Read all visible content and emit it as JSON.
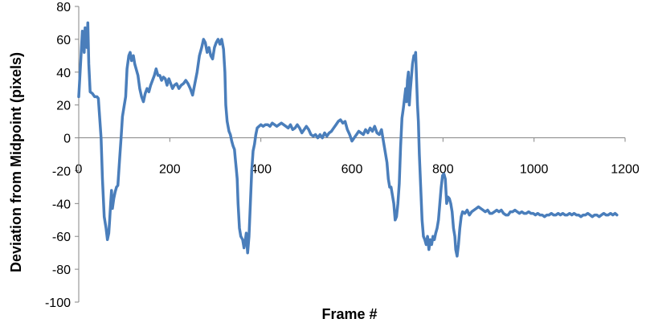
{
  "chart_data": {
    "type": "line",
    "title": "",
    "xlabel": "Frame #",
    "ylabel": "Deviation from Midpoint (pixels)",
    "xlim": [
      0,
      1200
    ],
    "ylim": [
      -100,
      80
    ],
    "x_ticks": [
      0,
      200,
      400,
      600,
      800,
      1000,
      1200
    ],
    "x_tick_labels": [
      "0",
      "200",
      "400",
      "600",
      "800",
      "1000",
      "1200"
    ],
    "y_ticks": [
      80,
      60,
      40,
      20,
      0,
      -20,
      -40,
      -60,
      -80,
      -100
    ],
    "y_tick_labels": [
      "80",
      "60",
      "40",
      "20",
      "0",
      "-20",
      "-40",
      "-60",
      "-80",
      "-100"
    ],
    "grid": false,
    "legend": "none",
    "series": [
      {
        "color": "#4a7ebb",
        "points": [
          [
            0,
            25
          ],
          [
            3,
            40
          ],
          [
            6,
            55
          ],
          [
            8,
            65
          ],
          [
            10,
            60
          ],
          [
            12,
            52
          ],
          [
            14,
            67
          ],
          [
            16,
            58
          ],
          [
            18,
            55
          ],
          [
            20,
            70
          ],
          [
            22,
            45
          ],
          [
            25,
            28
          ],
          [
            30,
            27
          ],
          [
            35,
            25
          ],
          [
            40,
            25
          ],
          [
            43,
            24
          ],
          [
            46,
            12
          ],
          [
            49,
            0
          ],
          [
            52,
            -25
          ],
          [
            56,
            -48
          ],
          [
            60,
            -55
          ],
          [
            63,
            -62
          ],
          [
            66,
            -58
          ],
          [
            68,
            -50
          ],
          [
            70,
            -40
          ],
          [
            72,
            -32
          ],
          [
            74,
            -43
          ],
          [
            77,
            -37
          ],
          [
            80,
            -33
          ],
          [
            83,
            -30
          ],
          [
            86,
            -29
          ],
          [
            90,
            -12
          ],
          [
            93,
            0
          ],
          [
            96,
            13
          ],
          [
            100,
            20
          ],
          [
            103,
            25
          ],
          [
            106,
            42
          ],
          [
            110,
            50
          ],
          [
            113,
            52
          ],
          [
            116,
            47
          ],
          [
            120,
            50
          ],
          [
            123,
            45
          ],
          [
            126,
            42
          ],
          [
            130,
            38
          ],
          [
            134,
            30
          ],
          [
            138,
            25
          ],
          [
            142,
            22
          ],
          [
            146,
            27
          ],
          [
            150,
            30
          ],
          [
            154,
            28
          ],
          [
            158,
            32
          ],
          [
            162,
            35
          ],
          [
            166,
            38
          ],
          [
            170,
            42
          ],
          [
            174,
            38
          ],
          [
            178,
            38
          ],
          [
            182,
            35
          ],
          [
            186,
            37
          ],
          [
            190,
            36
          ],
          [
            194,
            32
          ],
          [
            198,
            36
          ],
          [
            202,
            33
          ],
          [
            206,
            30
          ],
          [
            210,
            32
          ],
          [
            215,
            33
          ],
          [
            220,
            30
          ],
          [
            225,
            32
          ],
          [
            230,
            33
          ],
          [
            235,
            35
          ],
          [
            240,
            33
          ],
          [
            245,
            30
          ],
          [
            250,
            26
          ],
          [
            255,
            33
          ],
          [
            260,
            40
          ],
          [
            265,
            50
          ],
          [
            270,
            55
          ],
          [
            274,
            60
          ],
          [
            278,
            58
          ],
          [
            282,
            52
          ],
          [
            286,
            55
          ],
          [
            290,
            50
          ],
          [
            294,
            48
          ],
          [
            298,
            55
          ],
          [
            302,
            58
          ],
          [
            306,
            60
          ],
          [
            310,
            57
          ],
          [
            314,
            60
          ],
          [
            318,
            54
          ],
          [
            321,
            40
          ],
          [
            323,
            20
          ],
          [
            326,
            10
          ],
          [
            330,
            4
          ],
          [
            333,
            2
          ],
          [
            336,
            -2
          ],
          [
            339,
            -5
          ],
          [
            342,
            -7
          ],
          [
            344,
            -13
          ],
          [
            346,
            -19
          ],
          [
            348,
            -25
          ],
          [
            350,
            -40
          ],
          [
            353,
            -55
          ],
          [
            356,
            -60
          ],
          [
            360,
            -62
          ],
          [
            363,
            -67
          ],
          [
            366,
            -62
          ],
          [
            368,
            -58
          ],
          [
            371,
            -70
          ],
          [
            374,
            -60
          ],
          [
            377,
            -40
          ],
          [
            380,
            -20
          ],
          [
            383,
            -8
          ],
          [
            386,
            -4
          ],
          [
            389,
            2
          ],
          [
            392,
            6
          ],
          [
            396,
            7
          ],
          [
            400,
            8
          ],
          [
            405,
            7
          ],
          [
            410,
            8
          ],
          [
            415,
            8
          ],
          [
            420,
            7
          ],
          [
            425,
            9
          ],
          [
            430,
            8
          ],
          [
            435,
            7
          ],
          [
            440,
            8
          ],
          [
            445,
            9
          ],
          [
            450,
            8
          ],
          [
            455,
            7
          ],
          [
            460,
            6
          ],
          [
            465,
            8
          ],
          [
            470,
            5
          ],
          [
            475,
            6
          ],
          [
            480,
            8
          ],
          [
            485,
            6
          ],
          [
            490,
            3
          ],
          [
            495,
            5
          ],
          [
            500,
            7
          ],
          [
            505,
            5
          ],
          [
            510,
            2
          ],
          [
            515,
            1
          ],
          [
            520,
            2
          ],
          [
            525,
            0
          ],
          [
            530,
            2
          ],
          [
            535,
            0
          ],
          [
            540,
            3
          ],
          [
            545,
            1
          ],
          [
            550,
            3
          ],
          [
            555,
            4
          ],
          [
            560,
            6
          ],
          [
            565,
            8
          ],
          [
            570,
            10
          ],
          [
            575,
            11
          ],
          [
            580,
            9
          ],
          [
            585,
            10
          ],
          [
            590,
            5
          ],
          [
            595,
            2
          ],
          [
            600,
            -2
          ],
          [
            605,
            0
          ],
          [
            610,
            2
          ],
          [
            615,
            4
          ],
          [
            620,
            3
          ],
          [
            625,
            2
          ],
          [
            630,
            5
          ],
          [
            635,
            3
          ],
          [
            640,
            6
          ],
          [
            645,
            4
          ],
          [
            650,
            7
          ],
          [
            655,
            3
          ],
          [
            660,
            2
          ],
          [
            665,
            5
          ],
          [
            668,
            0
          ],
          [
            671,
            -5
          ],
          [
            674,
            -10
          ],
          [
            677,
            -15
          ],
          [
            680,
            -25
          ],
          [
            683,
            -30
          ],
          [
            686,
            -30
          ],
          [
            689,
            -35
          ],
          [
            692,
            -40
          ],
          [
            695,
            -50
          ],
          [
            698,
            -48
          ],
          [
            701,
            -40
          ],
          [
            704,
            -28
          ],
          [
            707,
            -5
          ],
          [
            710,
            12
          ],
          [
            713,
            18
          ],
          [
            716,
            25
          ],
          [
            718,
            30
          ],
          [
            720,
            22
          ],
          [
            722,
            35
          ],
          [
            724,
            40
          ],
          [
            726,
            20
          ],
          [
            728,
            28
          ],
          [
            730,
            35
          ],
          [
            733,
            45
          ],
          [
            736,
            50
          ],
          [
            738,
            48
          ],
          [
            740,
            52
          ],
          [
            742,
            35
          ],
          [
            744,
            20
          ],
          [
            746,
            10
          ],
          [
            748,
            -10
          ],
          [
            751,
            -30
          ],
          [
            754,
            -50
          ],
          [
            757,
            -60
          ],
          [
            760,
            -62
          ],
          [
            763,
            -65
          ],
          [
            766,
            -60
          ],
          [
            769,
            -68
          ],
          [
            772,
            -62
          ],
          [
            775,
            -65
          ],
          [
            778,
            -60
          ],
          [
            781,
            -62
          ],
          [
            784,
            -58
          ],
          [
            787,
            -55
          ],
          [
            790,
            -50
          ],
          [
            793,
            -40
          ],
          [
            796,
            -30
          ],
          [
            799,
            -23
          ],
          [
            802,
            -22
          ],
          [
            805,
            -25
          ],
          [
            808,
            -40
          ],
          [
            811,
            -36
          ],
          [
            814,
            -37
          ],
          [
            817,
            -40
          ],
          [
            820,
            -45
          ],
          [
            823,
            -55
          ],
          [
            826,
            -60
          ],
          [
            828,
            -68
          ],
          [
            831,
            -72
          ],
          [
            834,
            -65
          ],
          [
            837,
            -55
          ],
          [
            840,
            -48
          ],
          [
            843,
            -45
          ],
          [
            848,
            -46
          ],
          [
            853,
            -44
          ],
          [
            858,
            -47
          ],
          [
            863,
            -45
          ],
          [
            868,
            -44
          ],
          [
            873,
            -43
          ],
          [
            878,
            -42
          ],
          [
            883,
            -43
          ],
          [
            888,
            -44
          ],
          [
            893,
            -45
          ],
          [
            898,
            -44
          ],
          [
            903,
            -46
          ],
          [
            908,
            -46
          ],
          [
            913,
            -45
          ],
          [
            918,
            -44
          ],
          [
            923,
            -45
          ],
          [
            928,
            -44
          ],
          [
            933,
            -46
          ],
          [
            938,
            -47
          ],
          [
            943,
            -47
          ],
          [
            948,
            -45
          ],
          [
            953,
            -45
          ],
          [
            958,
            -44
          ],
          [
            963,
            -45
          ],
          [
            968,
            -46
          ],
          [
            973,
            -45
          ],
          [
            978,
            -46
          ],
          [
            983,
            -46
          ],
          [
            988,
            -45
          ],
          [
            993,
            -46
          ],
          [
            998,
            -46
          ],
          [
            1003,
            -47
          ],
          [
            1008,
            -46
          ],
          [
            1013,
            -47
          ],
          [
            1018,
            -47
          ],
          [
            1023,
            -48
          ],
          [
            1028,
            -47
          ],
          [
            1033,
            -47
          ],
          [
            1038,
            -46
          ],
          [
            1043,
            -47
          ],
          [
            1048,
            -47
          ],
          [
            1053,
            -46
          ],
          [
            1058,
            -47
          ],
          [
            1063,
            -46
          ],
          [
            1068,
            -47
          ],
          [
            1073,
            -47
          ],
          [
            1078,
            -46
          ],
          [
            1083,
            -47
          ],
          [
            1088,
            -46
          ],
          [
            1093,
            -47
          ],
          [
            1098,
            -47
          ],
          [
            1103,
            -48
          ],
          [
            1108,
            -47
          ],
          [
            1113,
            -47
          ],
          [
            1118,
            -46
          ],
          [
            1123,
            -47
          ],
          [
            1128,
            -48
          ],
          [
            1133,
            -47
          ],
          [
            1138,
            -47
          ],
          [
            1143,
            -48
          ],
          [
            1148,
            -47
          ],
          [
            1153,
            -46
          ],
          [
            1158,
            -47
          ],
          [
            1163,
            -47
          ],
          [
            1168,
            -46
          ],
          [
            1173,
            -47
          ],
          [
            1178,
            -46
          ],
          [
            1182,
            -47
          ]
        ]
      }
    ]
  }
}
